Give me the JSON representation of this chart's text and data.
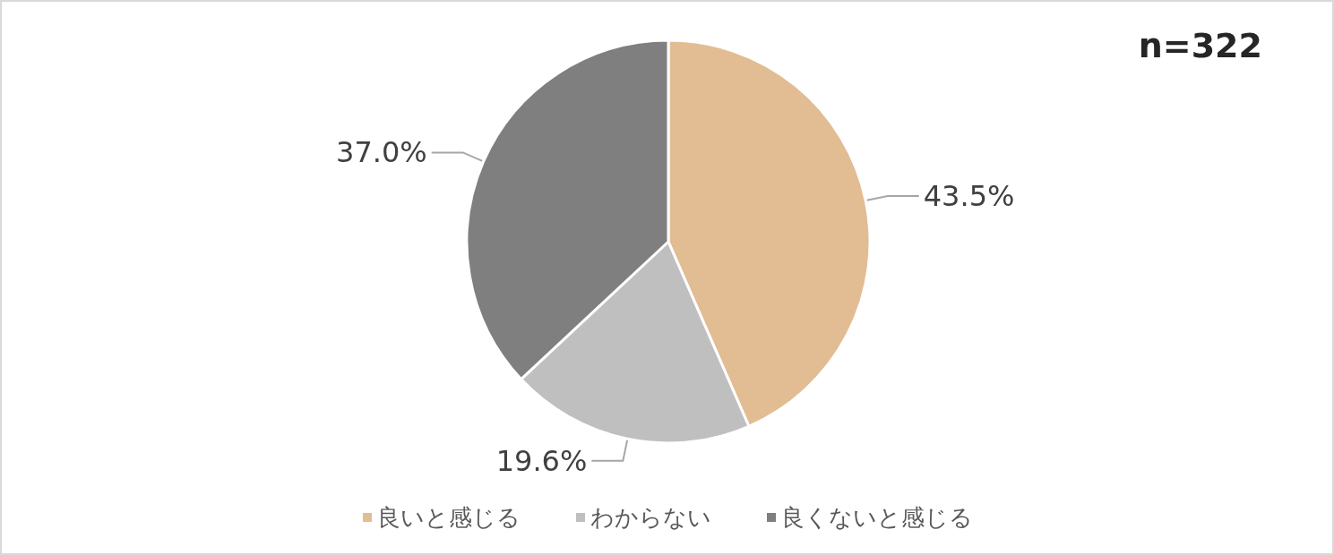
{
  "chart_data": {
    "type": "pie",
    "categories": [
      "良いと感じる",
      "わからない",
      "良くないと感じる"
    ],
    "values": [
      43.5,
      19.6,
      37.0
    ],
    "colors": [
      "#e2bc93",
      "#bfbfbf",
      "#7f7f7f"
    ],
    "value_labels": [
      "43.5%",
      "19.6%",
      "37.0%"
    ],
    "annotations": [
      "n=322"
    ],
    "legend": "bottom"
  }
}
